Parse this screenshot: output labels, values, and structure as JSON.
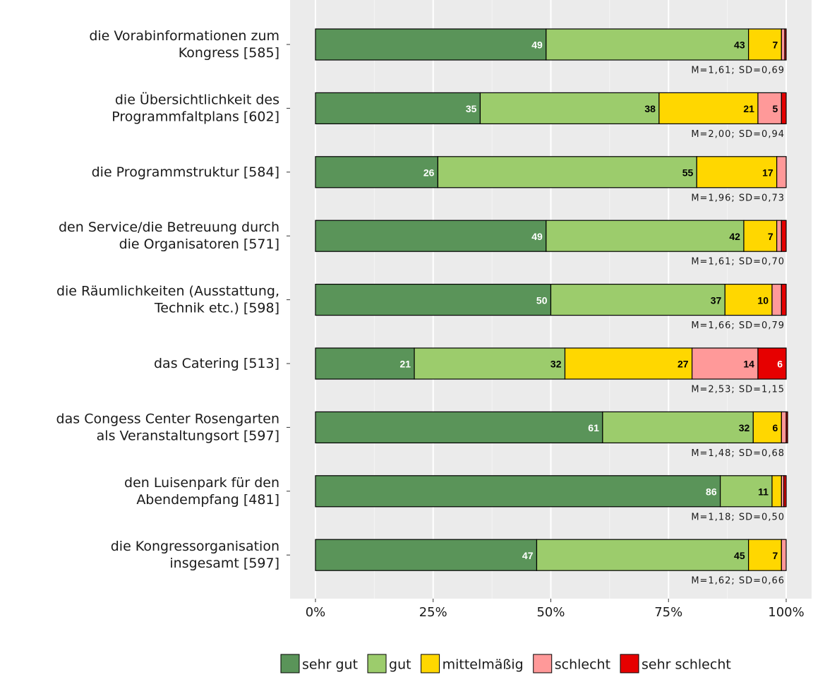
{
  "chart_data": {
    "type": "stacked-bar-horizontal",
    "categories": [
      "die Vorabinformationen zum\nKongress [585]",
      "die Übersichtlichkeit des\nProgrammfaltplans [602]",
      "die Programmstruktur [584]",
      "den Service/die Betreuung durch\ndie Organisatoren [571]",
      "die Räumlichkeiten (Ausstattung,\nTechnik etc.) [598]",
      "das Catering [513]",
      "das Congess Center Rosengarten\nals Veranstaltungsort [597]",
      "den Luisenpark für den\nAbendempfang [481]",
      "die Kongressorganisation\ninsgesamt [597]"
    ],
    "series": [
      {
        "name": "sehr gut",
        "color": "#5a9459",
        "label_color": "#ffffff",
        "values": [
          49,
          35,
          26,
          49,
          50,
          21,
          61,
          86,
          47
        ],
        "value_labels": [
          "49",
          "35",
          "26",
          "49",
          "50",
          "21",
          "61",
          "86",
          "47"
        ]
      },
      {
        "name": "gut",
        "color": "#9ccc6c",
        "label_color": "#000000",
        "values": [
          43,
          38,
          55,
          42,
          37,
          32,
          32,
          11,
          45
        ],
        "value_labels": [
          "43",
          "38",
          "55",
          "42",
          "37",
          "32",
          "32",
          "11",
          "45"
        ]
      },
      {
        "name": "mittelmäßig",
        "color": "#ffd700",
        "label_color": "#000000",
        "values": [
          7,
          21,
          17,
          7,
          10,
          27,
          6,
          2,
          7
        ],
        "value_labels": [
          "7",
          "21",
          "17",
          "7",
          "10",
          "27",
          "6",
          null,
          "7"
        ]
      },
      {
        "name": "schlecht",
        "color": "#ff9999",
        "label_color": "#000000",
        "values": [
          0.7,
          5,
          2,
          1,
          2,
          14,
          1,
          0.5,
          1
        ],
        "value_labels": [
          null,
          "5",
          null,
          null,
          null,
          "14",
          null,
          null,
          null
        ]
      },
      {
        "name": "sehr schlecht",
        "color": "#e60000",
        "label_color": "#ffffff",
        "values": [
          0.3,
          1,
          0,
          1,
          1,
          6,
          0.3,
          0.5,
          0
        ],
        "value_labels": [
          null,
          null,
          null,
          null,
          null,
          "6",
          null,
          null,
          null
        ]
      }
    ],
    "annotations": [
      "M=1,61; SD=0,69",
      "M=2,00; SD=0,94",
      "M=1,96; SD=0,73",
      "M=1,61; SD=0,70",
      "M=1,66; SD=0,79",
      "M=2,53; SD=1,15",
      "M=1,48; SD=0,68",
      "M=1,18; SD=0,50",
      "M=1,62; SD=0,66"
    ],
    "xlim": [
      0,
      100
    ],
    "xticks": [
      {
        "value": 0,
        "label": "0%"
      },
      {
        "value": 25,
        "label": "25%"
      },
      {
        "value": 50,
        "label": "50%"
      },
      {
        "value": 75,
        "label": "75%"
      },
      {
        "value": 100,
        "label": "100%"
      }
    ],
    "grid": true,
    "legend": "bottom"
  }
}
